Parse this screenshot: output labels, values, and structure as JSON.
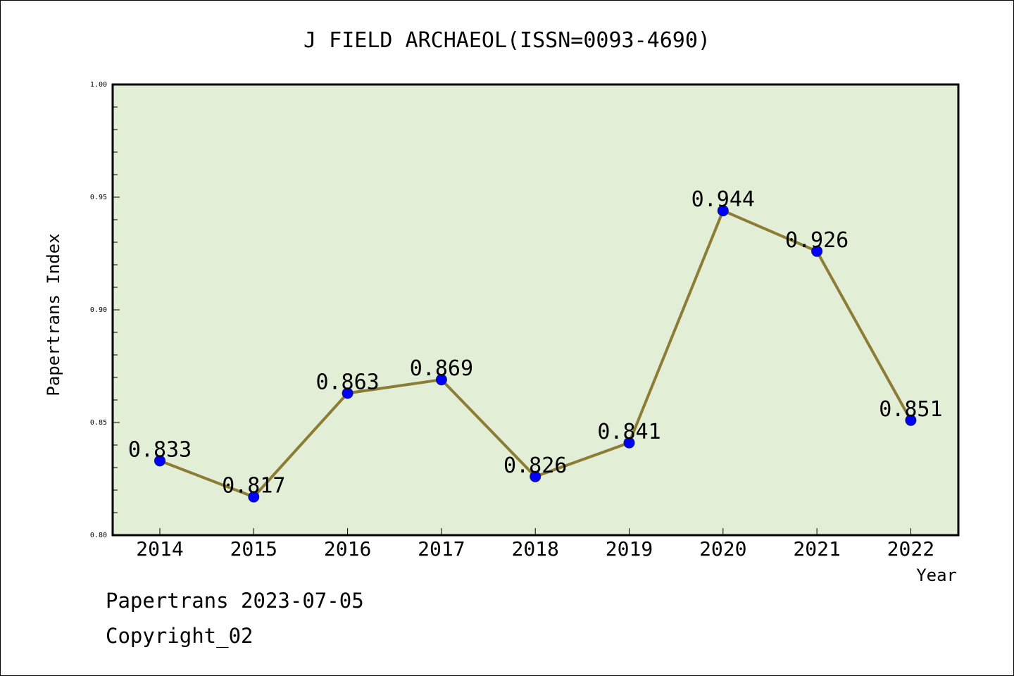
{
  "chart_data": {
    "type": "line",
    "title": "J FIELD ARCHAEOL(ISSN=0093-4690)",
    "xlabel": "Year",
    "ylabel": "Papertrans Index",
    "categories": [
      "2014",
      "2015",
      "2016",
      "2017",
      "2018",
      "2019",
      "2020",
      "2021",
      "2022"
    ],
    "series": [
      {
        "values": [
          0.833,
          0.817,
          0.863,
          0.869,
          0.826,
          0.841,
          0.944,
          0.926,
          0.851
        ]
      }
    ],
    "data_labels": [
      "0.833",
      "0.817",
      "0.863",
      "0.869",
      "0.826",
      "0.841",
      "0.944",
      "0.926",
      "0.851"
    ],
    "ylim": [
      0.8,
      1.0
    ],
    "yticks": [
      "0.80",
      "0.85",
      "0.90",
      "0.95",
      "1.00"
    ],
    "grid": false,
    "colors": {
      "plot_background": "#e2efd6",
      "line": "#8b7d35",
      "marker": "#0000ff"
    }
  },
  "footer": {
    "line1": "Papertrans 2023-07-05",
    "line2": "Copyright_02"
  }
}
